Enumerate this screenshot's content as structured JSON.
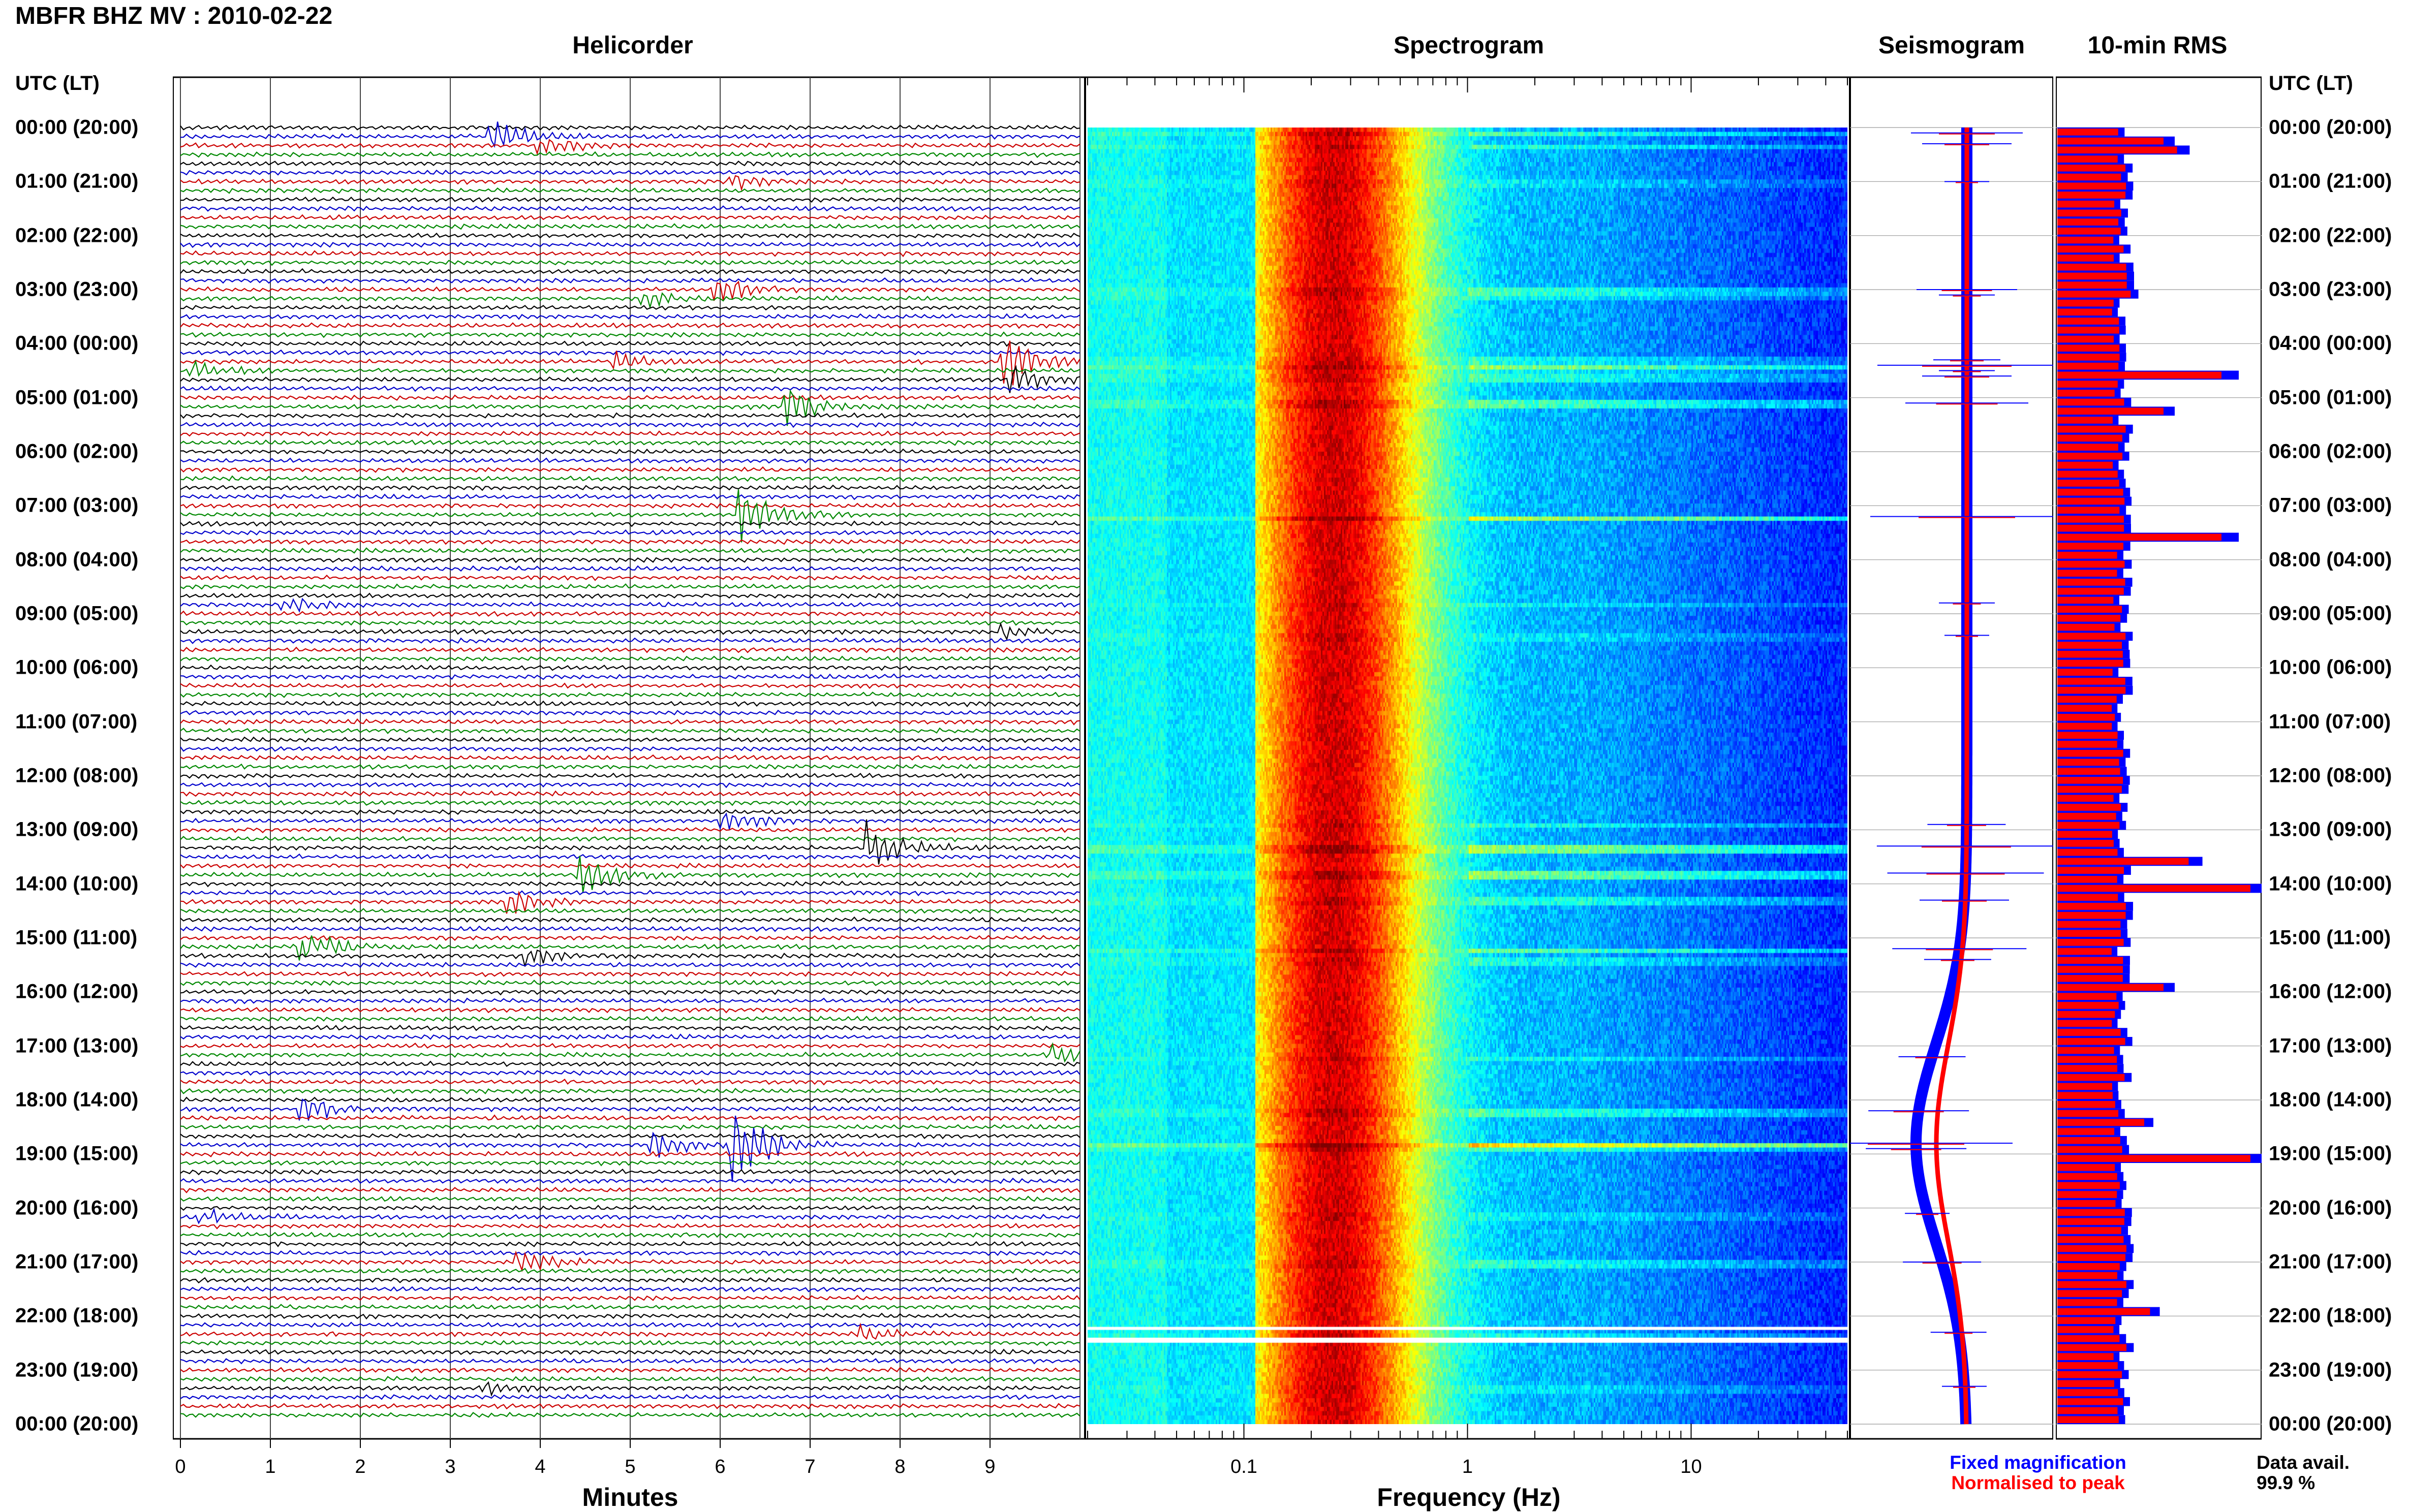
{
  "figure": {
    "title": "MBFR BHZ MV : 2010-02-22",
    "utc_header_left": "UTC (LT)",
    "utc_header_right": "UTC (LT)"
  },
  "panels": {
    "helicorder": {
      "title": "Helicorder",
      "xlabel": "Minutes",
      "ticks": [
        "0",
        "1",
        "2",
        "3",
        "4",
        "5",
        "6",
        "7",
        "8",
        "9"
      ]
    },
    "spectrogram": {
      "title": "Spectrogram",
      "xlabel": "Frequency (Hz)",
      "ticks": [
        "0.1",
        "1",
        "10"
      ]
    },
    "seismogram": {
      "title": "Seismogram"
    },
    "rms": {
      "title": "10-min RMS"
    }
  },
  "time_labels": [
    "00:00 (20:00)",
    "01:00 (21:00)",
    "02:00 (22:00)",
    "03:00 (23:00)",
    "04:00 (00:00)",
    "05:00 (01:00)",
    "06:00 (02:00)",
    "07:00 (03:00)",
    "08:00 (04:00)",
    "09:00 (05:00)",
    "10:00 (06:00)",
    "11:00 (07:00)",
    "12:00 (08:00)",
    "13:00 (09:00)",
    "14:00 (10:00)",
    "15:00 (11:00)",
    "16:00 (12:00)",
    "17:00 (13:00)",
    "18:00 (14:00)",
    "19:00 (15:00)",
    "20:00 (16:00)",
    "21:00 (17:00)",
    "22:00 (18:00)",
    "23:00 (19:00)",
    "00:00 (20:00)"
  ],
  "legend": {
    "fixed": "Fixed magnification",
    "normalised": "Normalised to peak",
    "data_avail_label": "Data avail.",
    "data_avail_value": "99.9 %"
  },
  "colors": {
    "trace_cycle": [
      "#000000",
      "#0000cc",
      "#cc0000",
      "#008800"
    ],
    "fixed": "#0000ff",
    "normalised": "#ff0000",
    "grid": "#999999"
  },
  "chart_data": {
    "type": "heatmap",
    "time_range_utc_hours": [
      0,
      24
    ],
    "helicorder": {
      "minutes_per_line": 10,
      "xlim_minutes": [
        0,
        10
      ],
      "events": [
        {
          "hour": 0.1,
          "minute": 3.5,
          "amp": 1.0
        },
        {
          "hour": 0.3,
          "minute": 4.0,
          "amp": 0.8
        },
        {
          "hour": 1.0,
          "minute": 6.2,
          "amp": 0.4
        },
        {
          "hour": 3.0,
          "minute": 6.0,
          "amp": 0.9
        },
        {
          "hour": 3.1,
          "minute": 5.2,
          "amp": 0.5
        },
        {
          "hour": 4.3,
          "minute": 4.9,
          "amp": 0.6
        },
        {
          "hour": 4.4,
          "minute": 9.2,
          "amp": 1.6
        },
        {
          "hour": 4.5,
          "minute": 0.2,
          "amp": 0.5
        },
        {
          "hour": 4.6,
          "minute": 9.3,
          "amp": 0.8
        },
        {
          "hour": 5.1,
          "minute": 6.8,
          "amp": 1.1
        },
        {
          "hour": 7.2,
          "minute": 6.3,
          "amp": 1.9
        },
        {
          "hour": 8.8,
          "minute": 1.2,
          "amp": 0.5
        },
        {
          "hour": 9.4,
          "minute": 9.2,
          "amp": 0.4
        },
        {
          "hour": 12.9,
          "minute": 6.1,
          "amp": 0.7
        },
        {
          "hour": 13.3,
          "minute": 7.7,
          "amp": 1.6
        },
        {
          "hour": 13.8,
          "minute": 4.5,
          "amp": 1.4
        },
        {
          "hour": 14.3,
          "minute": 3.7,
          "amp": 0.8
        },
        {
          "hour": 15.2,
          "minute": 1.4,
          "amp": 1.2
        },
        {
          "hour": 15.4,
          "minute": 3.9,
          "amp": 0.6
        },
        {
          "hour": 17.2,
          "minute": 9.7,
          "amp": 0.6
        },
        {
          "hour": 18.2,
          "minute": 1.4,
          "amp": 0.9
        },
        {
          "hour": 18.8,
          "minute": 6.2,
          "amp": 2.6
        },
        {
          "hour": 18.9,
          "minute": 5.3,
          "amp": 0.9
        },
        {
          "hour": 20.1,
          "minute": 0.3,
          "amp": 0.4
        },
        {
          "hour": 21.0,
          "minute": 3.8,
          "amp": 0.7
        },
        {
          "hour": 22.3,
          "minute": 7.6,
          "amp": 0.5
        },
        {
          "hour": 23.3,
          "minute": 3.4,
          "amp": 0.4
        }
      ]
    },
    "spectrogram": {
      "freq_range_hz": [
        0.02,
        50
      ],
      "log_frequency_axis": true,
      "colormap": "jet",
      "peak_frequency_hz": 0.25,
      "data_gap_utc_hours": [
        22.2,
        22.5
      ]
    },
    "seismogram": {
      "fixed_drift_min": -0.5,
      "fixed_drift_peak_hour": 18.8
    },
    "rms_10min": {
      "units": "relative",
      "xlim": [
        0,
        1
      ],
      "mean_value": 0.32,
      "peaks": [
        {
          "hour": 0.1,
          "value": 0.55
        },
        {
          "hour": 0.35,
          "value": 0.62
        },
        {
          "hour": 3.0,
          "value": 0.38
        },
        {
          "hour": 4.45,
          "value": 0.85
        },
        {
          "hour": 5.2,
          "value": 0.55
        },
        {
          "hour": 7.5,
          "value": 0.85
        },
        {
          "hour": 13.5,
          "value": 0.68
        },
        {
          "hour": 14.0,
          "value": 1.0
        },
        {
          "hour": 15.9,
          "value": 0.55
        },
        {
          "hour": 18.3,
          "value": 0.45
        },
        {
          "hour": 18.95,
          "value": 1.0
        },
        {
          "hour": 21.9,
          "value": 0.48
        }
      ]
    }
  }
}
